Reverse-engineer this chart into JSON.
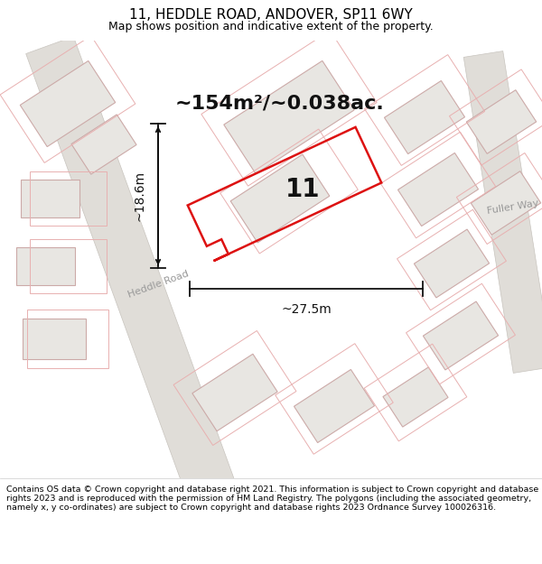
{
  "title": "11, HEDDLE ROAD, ANDOVER, SP11 6WY",
  "subtitle": "Map shows position and indicative extent of the property.",
  "area_text": "~154m²/~0.038ac.",
  "property_number": "11",
  "dim_width": "~27.5m",
  "dim_height": "~18.6m",
  "footer": "Contains OS data © Crown copyright and database right 2021. This information is subject to Crown copyright and database rights 2023 and is reproduced with the permission of HM Land Registry. The polygons (including the associated geometry, namely x, y co-ordinates) are subject to Crown copyright and database rights 2023 Ordnance Survey 100026316.",
  "bg_color": "#ffffff",
  "map_bg": "#f5f3f0",
  "road_label_color": "#999999",
  "highlight_color": "#dd1111",
  "building_fill": "#e8e6e2",
  "building_stroke": "#ccaaa8",
  "cadastral_color": "#e8b0b0",
  "dim_line_color": "#111111",
  "area_text_color": "#111111",
  "number_color": "#111111",
  "title_fontsize": 11,
  "subtitle_fontsize": 9,
  "area_fontsize": 16,
  "number_fontsize": 20,
  "road_label_fontsize": 8,
  "dim_fontsize": 10,
  "footer_fontsize": 6.8
}
